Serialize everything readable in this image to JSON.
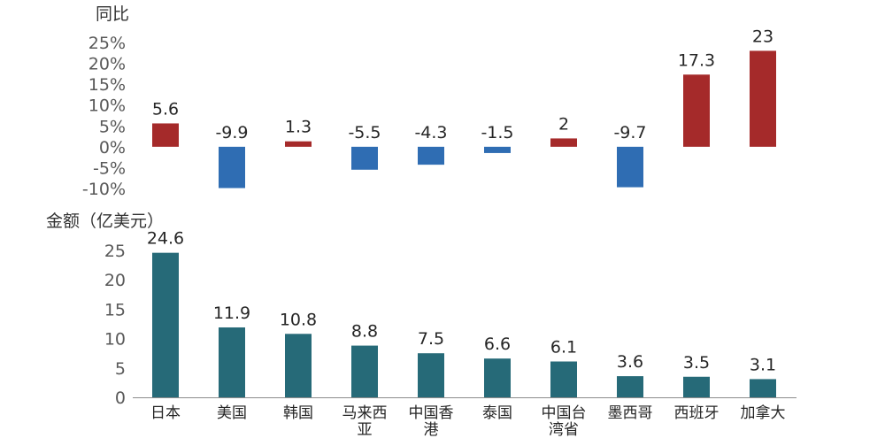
{
  "chart_data": [
    {
      "type": "bar",
      "ylabel": "同比",
      "yticks": [
        "25%",
        "20%",
        "15%",
        "10%",
        "5%",
        "0%",
        "-5%",
        "-10%"
      ],
      "ylim": [
        -10,
        25
      ],
      "values": [
        5.6,
        -9.9,
        1.3,
        -5.5,
        -4.3,
        -1.5,
        2,
        -9.7,
        17.3,
        23
      ],
      "value_labels": [
        "5.6",
        "-9.9",
        "1.3",
        "-5.5",
        "-4.3",
        "-1.5",
        "2",
        "-9.7",
        "17.3",
        "23"
      ],
      "colors": {
        "positive": "#a52a2a",
        "negative": "#2f6db3"
      }
    },
    {
      "type": "bar",
      "ylabel": "金额（亿美元）",
      "yticks": [
        "25",
        "20",
        "15",
        "10",
        "5",
        "0"
      ],
      "ylim": [
        0,
        25
      ],
      "categories": [
        "日本",
        "美国",
        "韩国",
        "马来西亚",
        "中国香港",
        "泰国",
        "中国台湾省",
        "墨西哥",
        "西班牙",
        "加拿大"
      ],
      "category_lines": [
        [
          "日本"
        ],
        [
          "美国"
        ],
        [
          "韩国"
        ],
        [
          "马来西",
          "亚"
        ],
        [
          "中国香",
          "港"
        ],
        [
          "泰国"
        ],
        [
          "中国台",
          "湾省"
        ],
        [
          "墨西哥"
        ],
        [
          "西班牙"
        ],
        [
          "加拿大"
        ]
      ],
      "values": [
        24.6,
        11.9,
        10.8,
        8.8,
        7.5,
        6.6,
        6.1,
        3.6,
        3.5,
        3.1
      ],
      "value_labels": [
        "24.6",
        "11.9",
        "10.8",
        "8.8",
        "7.5",
        "6.6",
        "6.1",
        "3.6",
        "3.5",
        "3.1"
      ],
      "colors": {
        "bar": "#266a78"
      }
    }
  ]
}
